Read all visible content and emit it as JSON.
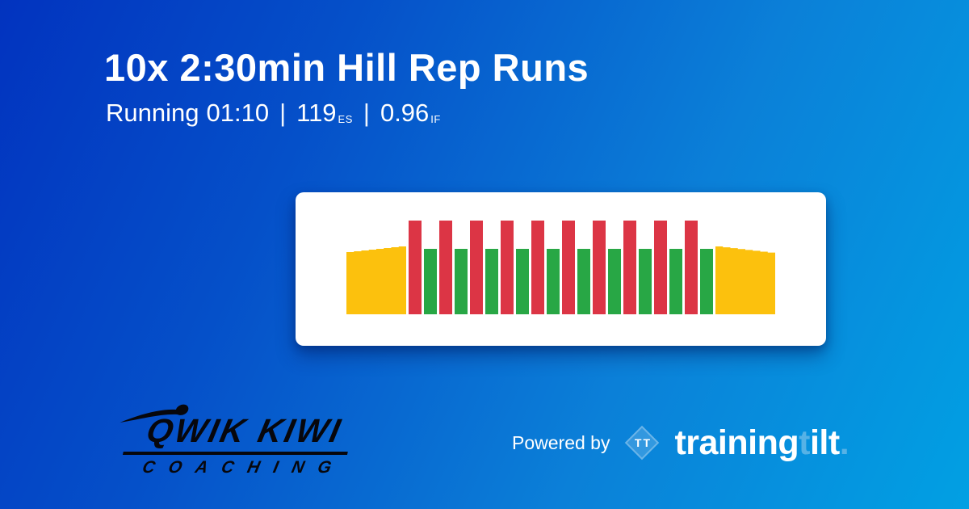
{
  "header": {
    "title": "10x 2:30min Hill Rep Runs",
    "subtitle": {
      "activity": "Running",
      "duration": "01:10",
      "separator": "|",
      "stress_value": "119",
      "stress_unit": "ES",
      "intensity_value": "0.96",
      "intensity_unit": "IF"
    }
  },
  "chart_data": {
    "type": "bar",
    "title": "Workout intensity profile: 10x 2:30min hill rep runs",
    "xlabel": "",
    "ylabel": "",
    "axes_hidden": true,
    "gridlines": false,
    "legend": false,
    "reps": 10,
    "colors": {
      "warmup": "#fcc10d",
      "work": "#dc3545",
      "recovery": "#28a745",
      "cooldown": "#fcc10d"
    },
    "segments": [
      {
        "kind": "warmup",
        "w": 74,
        "h_start": 0.66,
        "h_end": 0.72
      },
      {
        "kind": "work",
        "w": 16,
        "h": 1.0
      },
      {
        "kind": "recovery",
        "w": 16,
        "h": 0.7
      },
      {
        "kind": "work",
        "w": 16,
        "h": 1.0
      },
      {
        "kind": "recovery",
        "w": 16,
        "h": 0.7
      },
      {
        "kind": "work",
        "w": 16,
        "h": 1.0
      },
      {
        "kind": "recovery",
        "w": 16,
        "h": 0.7
      },
      {
        "kind": "work",
        "w": 16,
        "h": 1.0
      },
      {
        "kind": "recovery",
        "w": 16,
        "h": 0.7
      },
      {
        "kind": "work",
        "w": 16,
        "h": 1.0
      },
      {
        "kind": "recovery",
        "w": 16,
        "h": 0.7
      },
      {
        "kind": "work",
        "w": 16,
        "h": 1.0
      },
      {
        "kind": "recovery",
        "w": 16,
        "h": 0.7
      },
      {
        "kind": "work",
        "w": 16,
        "h": 1.0
      },
      {
        "kind": "recovery",
        "w": 16,
        "h": 0.7
      },
      {
        "kind": "work",
        "w": 16,
        "h": 1.0
      },
      {
        "kind": "recovery",
        "w": 16,
        "h": 0.7
      },
      {
        "kind": "work",
        "w": 16,
        "h": 1.0
      },
      {
        "kind": "recovery",
        "w": 16,
        "h": 0.7
      },
      {
        "kind": "work",
        "w": 16,
        "h": 1.0
      },
      {
        "kind": "recovery",
        "w": 16,
        "h": 0.7
      },
      {
        "kind": "cooldown",
        "w": 74,
        "h_start": 0.72,
        "h_end": 0.655
      }
    ]
  },
  "footer": {
    "coach_logo": {
      "name": "QWIK KIWI",
      "subtext": "COACHING"
    },
    "powered_by_label": "Powered by",
    "brand": {
      "diamond_text": "TT",
      "name_part1": "training",
      "name_part2": "t",
      "name_part3": "ilt",
      "name_part4": "."
    }
  },
  "colors": {
    "background_start": "#0233bf",
    "background_end": "#01a0e3",
    "card": "#ffffff",
    "text": "#ffffff",
    "work_bar": "#dc3545",
    "recovery_bar": "#28a745",
    "ramp_bar": "#fcc10d",
    "brand_light_blue": "#56b2e6",
    "coach_logo_color": "#07070c"
  }
}
